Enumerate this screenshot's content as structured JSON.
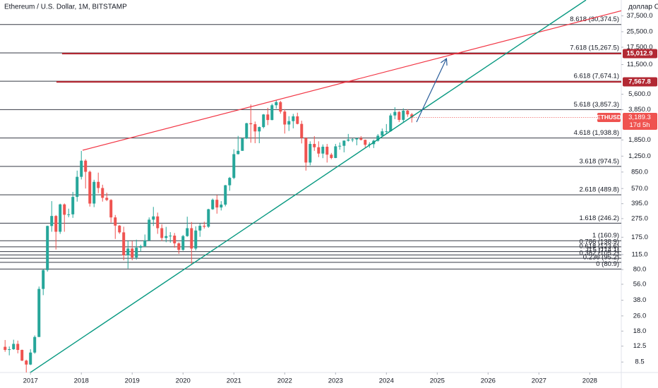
{
  "chart_data": {
    "type": "candlestick",
    "title": "Ethereum / U.S. Dollar, 1M, BITSTAMP",
    "currency": "доллар С",
    "ticker": "ETHUSD",
    "last_price": {
      "value": 3189.3,
      "label": "3,189.3"
    },
    "countdown": "17d 5h",
    "log_scale": true,
    "up_color": "#26a69a",
    "down_color": "#ef5350",
    "x": [
      2016.5,
      2016.583,
      2016.667,
      2016.75,
      2016.833,
      2016.917,
      2017.0,
      2017.083,
      2017.167,
      2017.25,
      2017.333,
      2017.417,
      2017.5,
      2017.583,
      2017.667,
      2017.75,
      2017.833,
      2017.917,
      2018.0,
      2018.083,
      2018.167,
      2018.25,
      2018.333,
      2018.417,
      2018.5,
      2018.583,
      2018.667,
      2018.75,
      2018.833,
      2018.917,
      2019.0,
      2019.083,
      2019.167,
      2019.25,
      2019.333,
      2019.417,
      2019.5,
      2019.583,
      2019.667,
      2019.75,
      2019.833,
      2019.917,
      2020.0,
      2020.083,
      2020.167,
      2020.25,
      2020.333,
      2020.417,
      2020.5,
      2020.583,
      2020.667,
      2020.75,
      2020.833,
      2020.917,
      2021.0,
      2021.083,
      2021.167,
      2021.25,
      2021.333,
      2021.417,
      2021.5,
      2021.583,
      2021.667,
      2021.75,
      2021.833,
      2021.917,
      2022.0,
      2022.083,
      2022.167,
      2022.25,
      2022.333,
      2022.417,
      2022.5,
      2022.583,
      2022.667,
      2022.75,
      2022.833,
      2022.917,
      2023.0,
      2023.083,
      2023.167,
      2023.25,
      2023.333,
      2023.417,
      2023.5,
      2023.583,
      2023.667,
      2023.75,
      2023.833,
      2023.917,
      2024.0,
      2024.083,
      2024.167,
      2024.25,
      2024.333,
      2024.417,
      2024.5
    ],
    "open": [
      12.3,
      11.4,
      11.6,
      13.2,
      11.4,
      8.8,
      8.0,
      10.7,
      15.6,
      50,
      79,
      230,
      293,
      200,
      388,
      302,
      305,
      465,
      757,
      1120,
      855,
      396,
      670,
      577,
      455,
      432,
      283,
      232,
      197,
      113,
      133,
      107,
      136,
      141,
      162,
      268,
      290,
      218,
      172,
      180,
      182,
      151,
      129,
      180,
      218,
      133,
      206,
      231,
      226,
      345,
      434,
      360,
      386,
      617,
      738,
      1312,
      1422,
      1918,
      2775,
      2710,
      2275,
      2530,
      3430,
      3000,
      4290,
      4630,
      3680,
      2690,
      2920,
      3280,
      2730,
      1940,
      1070,
      1680,
      1550,
      1330,
      1570,
      1295,
      1195,
      1585,
      1605,
      1820,
      1870,
      1875,
      1935,
      1855,
      1645,
      1670,
      1815,
      2050,
      2280,
      2285,
      3350,
      3650,
      3010,
      3760,
      3440
    ],
    "high": [
      14.5,
      12.4,
      14.6,
      14.3,
      11.5,
      9.0,
      11.6,
      16.2,
      53,
      81,
      232,
      420,
      300,
      395,
      397,
      350,
      525,
      880,
      1420,
      1160,
      880,
      705,
      838,
      625,
      515,
      440,
      300,
      235,
      226,
      160,
      160,
      165,
      146,
      187,
      283,
      365,
      318,
      240,
      225,
      198,
      194,
      155,
      185,
      288,
      253,
      228,
      245,
      255,
      349,
      447,
      488,
      420,
      622,
      755,
      1475,
      2040,
      1945,
      2800,
      4370,
      2890,
      2560,
      3470,
      4030,
      4460,
      4870,
      4780,
      3900,
      3290,
      3480,
      3580,
      2950,
      1975,
      1790,
      2030,
      1790,
      1660,
      1680,
      1350,
      1680,
      1740,
      1830,
      2140,
      1930,
      1935,
      2030,
      1870,
      1750,
      1865,
      2135,
      2440,
      2720,
      3520,
      4090,
      3730,
      3980,
      3890,
      3560
    ],
    "low": [
      10.9,
      10.0,
      11.4,
      10.5,
      8.7,
      6.4,
      7.9,
      10.4,
      15.6,
      43,
      76,
      200,
      130,
      190,
      200,
      284,
      280,
      415,
      710,
      570,
      368,
      363,
      510,
      415,
      420,
      250,
      168,
      190,
      100,
      82,
      100,
      102,
      124,
      138,
      160,
      230,
      190,
      160,
      155,
      153,
      136,
      117,
      126,
      177,
      90,
      127,
      177,
      216,
      220,
      340,
      310,
      335,
      370,
      540,
      715,
      1300,
      1420,
      1890,
      1730,
      1710,
      1710,
      2450,
      2650,
      2980,
      3960,
      3500,
      2160,
      2300,
      2450,
      2700,
      1700,
      880,
      1000,
      1420,
      1220,
      1190,
      1070,
      1160,
      1190,
      1460,
      1370,
      1780,
      1760,
      1625,
      1825,
      1550,
      1530,
      1520,
      1775,
      2040,
      2160,
      2260,
      3060,
      2860,
      2820,
      3240,
      2820
    ],
    "close": [
      11.4,
      11.6,
      13.2,
      11.4,
      8.8,
      8.0,
      10.7,
      15.6,
      50,
      79,
      230,
      293,
      200,
      388,
      302,
      305,
      465,
      757,
      1120,
      855,
      396,
      670,
      577,
      455,
      432,
      283,
      232,
      197,
      113,
      133,
      107,
      136,
      141,
      162,
      268,
      290,
      218,
      172,
      180,
      182,
      151,
      129,
      180,
      218,
      133,
      206,
      231,
      226,
      345,
      434,
      360,
      386,
      617,
      738,
      1312,
      1422,
      1918,
      2775,
      2710,
      2275,
      2530,
      3430,
      3000,
      4290,
      4630,
      3680,
      2690,
      2920,
      3280,
      2730,
      1940,
      1070,
      1680,
      1550,
      1330,
      1570,
      1295,
      1195,
      1585,
      1605,
      1820,
      1870,
      1875,
      1935,
      1855,
      1645,
      1670,
      1815,
      2050,
      2280,
      2285,
      3350,
      3650,
      3010,
      3760,
      3440,
      3189.3
    ],
    "xlim": [
      2016.4,
      2028.62
    ],
    "xticks": [
      2017,
      2018,
      2019,
      2020,
      2021,
      2022,
      2023,
      2024,
      2025,
      2026,
      2027,
      2028
    ],
    "ylim": [
      6.6,
      55000
    ],
    "yticks": [
      {
        "value": 8.5,
        "label": "8.5"
      },
      {
        "value": 12.5,
        "label": "12.5"
      },
      {
        "value": 18,
        "label": "18.0"
      },
      {
        "value": 26,
        "label": "26.0"
      },
      {
        "value": 38,
        "label": "38.0"
      },
      {
        "value": 56,
        "label": "56.0"
      },
      {
        "value": 80,
        "label": "80.0"
      },
      {
        "value": 115,
        "label": "115.0"
      },
      {
        "value": 175,
        "label": "175.0"
      },
      {
        "value": 275,
        "label": "275.0"
      },
      {
        "value": 395,
        "label": "395.0"
      },
      {
        "value": 570,
        "label": "570.0"
      },
      {
        "value": 850,
        "label": "850.0"
      },
      {
        "value": 1250,
        "label": "1,250.0"
      },
      {
        "value": 1850,
        "label": "1,850.0"
      },
      {
        "value": 3850,
        "label": "3,850.0"
      },
      {
        "value": 5600,
        "label": "5,600.0"
      },
      {
        "value": 11500,
        "label": "11,500.0"
      },
      {
        "value": 17500,
        "label": "17,500.0"
      },
      {
        "value": 25500,
        "label": "25,500.0"
      },
      {
        "value": 37500,
        "label": "37,500.0"
      }
    ],
    "fib_levels": [
      {
        "value": 80.9,
        "label": "0 (80.9)"
      },
      {
        "value": 95.2,
        "label": "0.236 (95.2)"
      },
      {
        "value": 105.2,
        "label": "0.382 (105.2)"
      },
      {
        "value": 114.1,
        "label": "0.5 (114.1)"
      },
      {
        "value": 123.6,
        "label": "0.618 (123.6)"
      },
      {
        "value": 138.9,
        "label": "0.786 (138.9)"
      },
      {
        "value": 160.9,
        "label": "1 (160.9)"
      },
      {
        "value": 246.2,
        "label": "1.618 (246.2)"
      },
      {
        "value": 489.8,
        "label": "2.618 (489.8)"
      },
      {
        "value": 974.5,
        "label": "3.618 (974.5)"
      },
      {
        "value": 1938.8,
        "label": "4.618 (1,938.8)"
      },
      {
        "value": 3857.3,
        "label": "5.618 (3,857.3)"
      },
      {
        "value": 7674.1,
        "label": "6.618 (7,674.1)"
      },
      {
        "value": 15267.5,
        "label": "7.618 (15,267.5)"
      },
      {
        "value": 30374.5,
        "label": "8.618 (30,374.5)"
      }
    ],
    "horizontal_lines": [
      {
        "value": 15012.9,
        "label": "15,012.9",
        "color": "#b22833",
        "start": 2017.62
      },
      {
        "value": 7567.8,
        "label": "7,567.8",
        "color": "#b22833",
        "start": 2017.51
      }
    ]
  }
}
